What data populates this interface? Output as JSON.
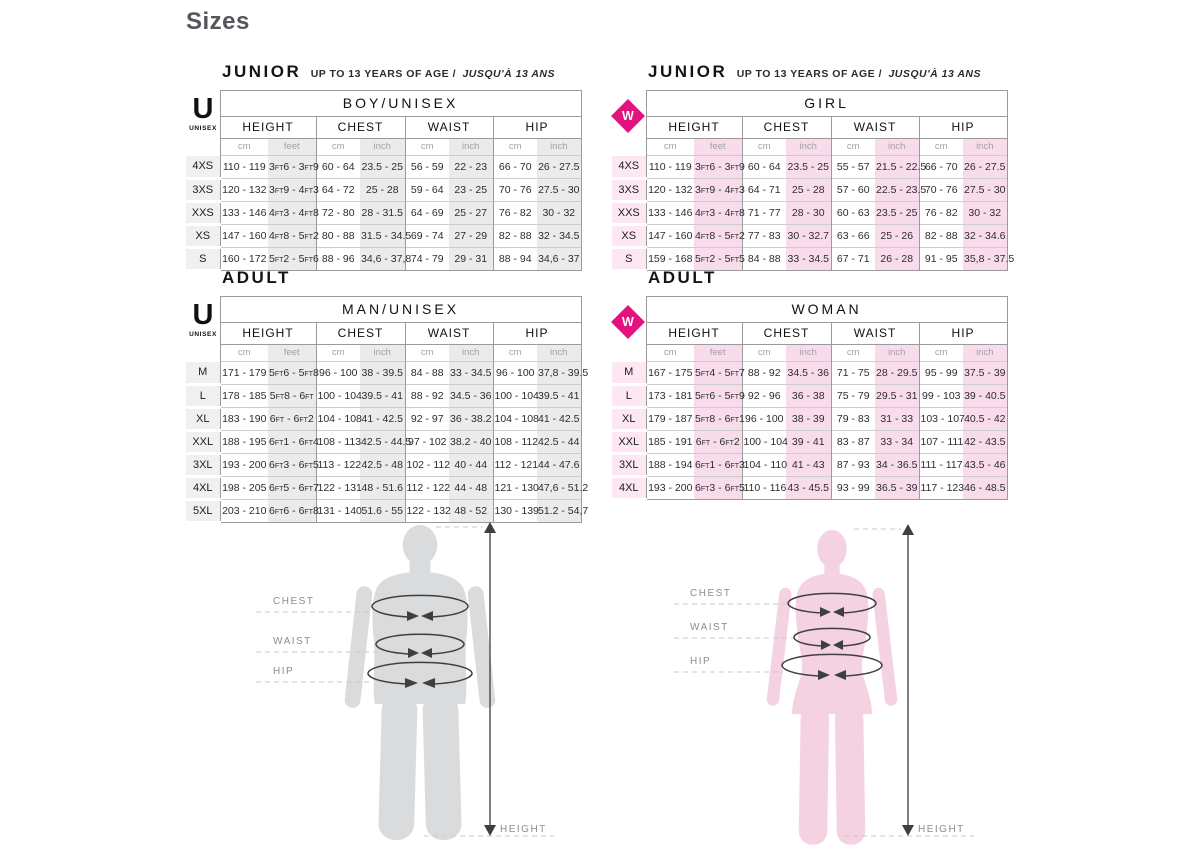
{
  "page": {
    "title": "Sizes"
  },
  "sections": {
    "junior": {
      "title": "JUNIOR",
      "subtitle": "UP TO 13 YEARS OF AGE /",
      "subtitle_fr": "JUSQU'À 13 ANS"
    },
    "adult": {
      "title": "ADULT"
    }
  },
  "logos": {
    "unisex": {
      "letter": "U",
      "caption": "UNISEX"
    },
    "woman": {
      "letter": "W"
    }
  },
  "colors": {
    "accent_pink": "#e2127e",
    "pink_chip": "#fce7f2",
    "pink_shade": "#f9dcec",
    "gray_chip": "#f0f0f1",
    "gray_shade": "#ebebec",
    "male_silhouette": "#d9dbdd",
    "female_silhouette": "#f4d2e2"
  },
  "tables": {
    "junior_boy": {
      "title": "BOY/UNISEX",
      "groups": [
        "HEIGHT",
        "CHEST",
        "WAIST",
        "HIP"
      ],
      "units": [
        "cm",
        "feet",
        "cm",
        "inch",
        "cm",
        "inch",
        "cm",
        "inch"
      ],
      "rows": [
        {
          "size": "4XS",
          "values": [
            "110 - 119",
            "3FT6 - 3FT9",
            "60 - 64",
            "23.5 - 25",
            "56 - 59",
            "22 - 23",
            "66 - 70",
            "26 - 27.5"
          ]
        },
        {
          "size": "3XS",
          "values": [
            "120 - 132",
            "3FT9 - 4FT3",
            "64 - 72",
            "25 - 28",
            "59 - 64",
            "23 - 25",
            "70 - 76",
            "27.5 - 30"
          ]
        },
        {
          "size": "XXS",
          "values": [
            "133 - 146",
            "4FT3 - 4FT8",
            "72 - 80",
            "28 - 31.5",
            "64 - 69",
            "25 - 27",
            "76 - 82",
            "30 - 32"
          ]
        },
        {
          "size": "XS",
          "values": [
            "147 - 160",
            "4FT8 - 5FT2",
            "80 - 88",
            "31.5 - 34.5",
            "69 - 74",
            "27 - 29",
            "82 - 88",
            "32 - 34.5"
          ]
        },
        {
          "size": "S",
          "values": [
            "160 - 172",
            "5FT2 - 5FT6",
            "88 - 96",
            "34,6 - 37,8",
            "74 - 79",
            "29 - 31",
            "88 - 94",
            "34,6 - 37"
          ]
        }
      ]
    },
    "junior_girl": {
      "title": "GIRL",
      "groups": [
        "HEIGHT",
        "CHEST",
        "WAIST",
        "HIP"
      ],
      "units": [
        "cm",
        "feet",
        "cm",
        "inch",
        "cm",
        "inch",
        "cm",
        "inch"
      ],
      "rows": [
        {
          "size": "4XS",
          "values": [
            "110 - 119",
            "3FT6 - 3FT9",
            "60 - 64",
            "23.5 - 25",
            "55 - 57",
            "21.5 - 22.5",
            "66 - 70",
            "26 - 27.5"
          ]
        },
        {
          "size": "3XS",
          "values": [
            "120 - 132",
            "3FT9 - 4FT3",
            "64 - 71",
            "25 - 28",
            "57 - 60",
            "22.5 - 23.5",
            "70 - 76",
            "27.5 - 30"
          ]
        },
        {
          "size": "XXS",
          "values": [
            "133 - 146",
            "4FT3 - 4FT8",
            "71 - 77",
            "28 - 30",
            "60 - 63",
            "23.5 - 25",
            "76 - 82",
            "30 - 32"
          ]
        },
        {
          "size": "XS",
          "values": [
            "147 - 160",
            "4FT8 - 5FT2",
            "77 - 83",
            "30 - 32.7",
            "63 - 66",
            "25 - 26",
            "82 - 88",
            "32 - 34.6"
          ]
        },
        {
          "size": "S",
          "values": [
            "159 - 168",
            "5FT2 - 5FT5",
            "84 - 88",
            "33 - 34.5",
            "67 - 71",
            "26 - 28",
            "91 - 95",
            "35,8 - 37.5"
          ]
        }
      ]
    },
    "adult_man": {
      "title": "MAN/UNISEX",
      "groups": [
        "HEIGHT",
        "CHEST",
        "WAIST",
        "HIP"
      ],
      "units": [
        "cm",
        "feet",
        "cm",
        "inch",
        "cm",
        "inch",
        "cm",
        "inch"
      ],
      "rows": [
        {
          "size": "M",
          "values": [
            "171 - 179",
            "5FT6 - 5FT8",
            "96 - 100",
            "38 - 39.5",
            "84 - 88",
            "33 - 34.5",
            "96 - 100",
            "37,8 - 39.5"
          ]
        },
        {
          "size": "L",
          "values": [
            "178 - 185",
            "5FT8 - 6FT",
            "100 - 104",
            "39.5 - 41",
            "88 - 92",
            "34.5 - 36",
            "100 - 104",
            "39.5 - 41"
          ]
        },
        {
          "size": "XL",
          "values": [
            "183 - 190",
            "6FT - 6FT2",
            "104 - 108",
            "41 - 42.5",
            "92 - 97",
            "36 - 38.2",
            "104 - 108",
            "41 - 42.5"
          ]
        },
        {
          "size": "XXL",
          "values": [
            "188 - 195",
            "6FT1 - 6FT4",
            "108 - 113",
            "42.5 - 44.5",
            "97 - 102",
            "38.2 - 40",
            "108 - 112",
            "42.5 - 44"
          ]
        },
        {
          "size": "3XL",
          "values": [
            "193 - 200",
            "6FT3 - 6FT5",
            "113 - 122",
            "42.5 - 48",
            "102 - 112",
            "40 - 44",
            "112 - 121",
            "44 - 47.6"
          ]
        },
        {
          "size": "4XL",
          "values": [
            "198 - 205",
            "6FT5 - 6FT7",
            "122 - 131",
            "48 - 51.6",
            "112 - 122",
            "44 - 48",
            "121 - 130",
            "47,6 - 51.2"
          ]
        },
        {
          "size": "5XL",
          "values": [
            "203 - 210",
            "6FT6 - 6FT8",
            "131 - 140",
            "51.6 - 55",
            "122 - 132",
            "48 - 52",
            "130 - 139",
            "51.2 - 54,7"
          ]
        }
      ]
    },
    "adult_woman": {
      "title": "WOMAN",
      "groups": [
        "HEIGHT",
        "CHEST",
        "WAIST",
        "HIP"
      ],
      "units": [
        "cm",
        "feet",
        "cm",
        "inch",
        "cm",
        "inch",
        "cm",
        "inch"
      ],
      "rows": [
        {
          "size": "M",
          "values": [
            "167 - 175",
            "5FT4 - 5FT7",
            "88 - 92",
            "34.5 - 36",
            "71 - 75",
            "28 - 29.5",
            "95 - 99",
            "37.5 - 39"
          ]
        },
        {
          "size": "L",
          "values": [
            "173 - 181",
            "5FT6 - 5FT9",
            "92 - 96",
            "36 - 38",
            "75 - 79",
            "29.5 - 31",
            "99 - 103",
            "39 - 40.5"
          ]
        },
        {
          "size": "XL",
          "values": [
            "179 - 187",
            "5FT8 - 6FT1",
            "96 - 100",
            "38 - 39",
            "79 - 83",
            "31 - 33",
            "103 - 107",
            "40.5 - 42"
          ]
        },
        {
          "size": "XXL",
          "values": [
            "185 - 191",
            "6FT - 6FT2",
            "100 - 104",
            "39 - 41",
            "83 - 87",
            "33 - 34",
            "107 - 111",
            "42 - 43.5"
          ]
        },
        {
          "size": "3XL",
          "values": [
            "188 - 194",
            "6FT1 - 6FT3",
            "104 - 110",
            "41 - 43",
            "87 - 93",
            "34 - 36.5",
            "111 - 117",
            "43.5 - 46"
          ]
        },
        {
          "size": "4XL",
          "values": [
            "193 - 200",
            "6FT3 - 6FT5",
            "110 - 116",
            "43 - 45.5",
            "93 - 99",
            "36.5 - 39",
            "117 - 123",
            "46 - 48.5"
          ]
        }
      ]
    }
  },
  "figure_labels": {
    "chest": "CHEST",
    "waist": "WAIST",
    "hip": "HIP",
    "height": "HEIGHT"
  }
}
